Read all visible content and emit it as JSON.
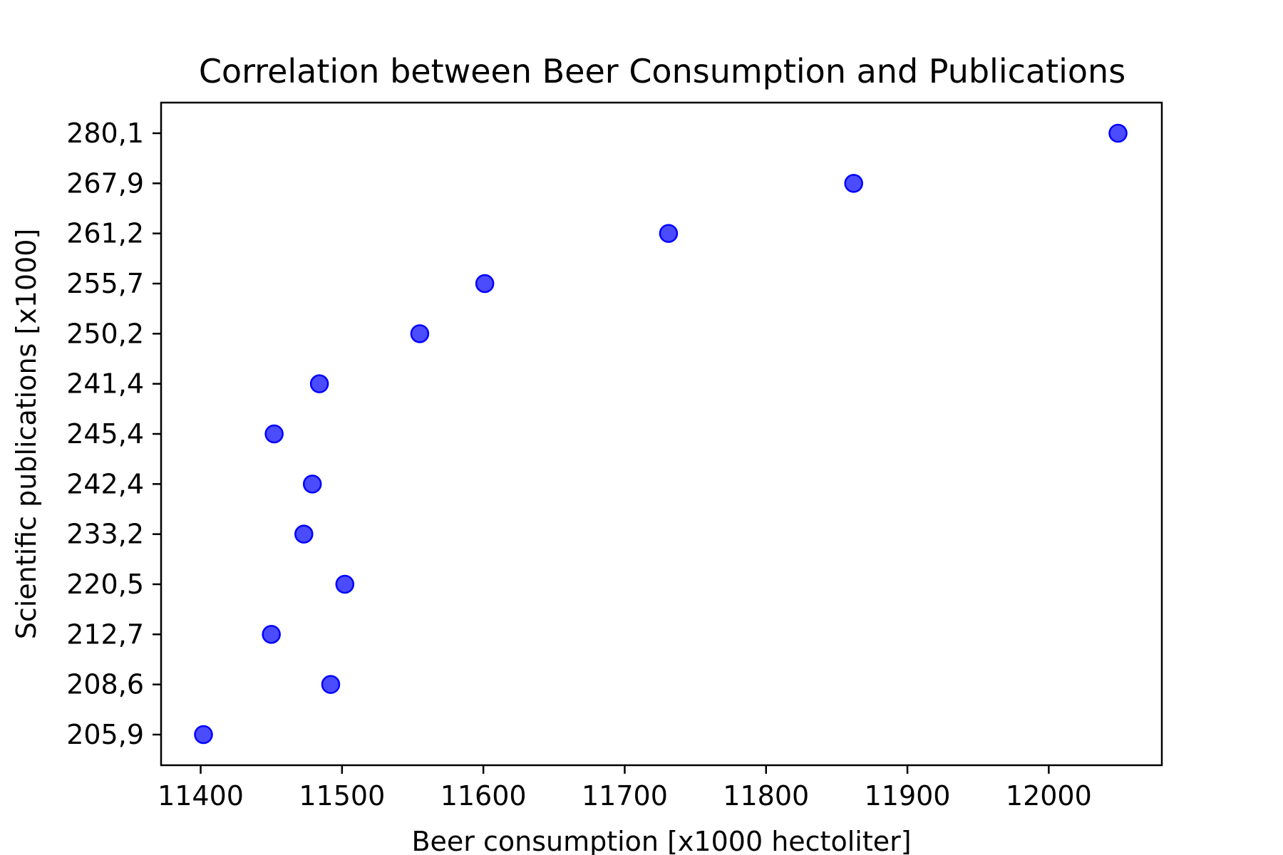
{
  "chart_data": {
    "type": "scatter",
    "title": "Correlation between Beer Consumption and Publications",
    "xlabel": "Beer consumption [x1000 hectoliter]",
    "ylabel": "Scientific publications [x1000]",
    "xlim": [
      11372,
      12080
    ],
    "x_ticks": [
      11400,
      11500,
      11600,
      11700,
      11800,
      11900,
      12000
    ],
    "x_tick_labels": [
      "11400",
      "11500",
      "11600",
      "11700",
      "11800",
      "11900",
      "12000"
    ],
    "y_axis": "categorical",
    "y_categories": [
      "205,9",
      "208,6",
      "212,7",
      "220,5",
      "233,2",
      "242,4",
      "245,4",
      "241,4",
      "250,2",
      "255,7",
      "261,2",
      "267,9",
      "280,1"
    ],
    "grid": false,
    "legend": false,
    "marker_color": "#0000ff",
    "marker_opacity": 0.7,
    "points": [
      {
        "x": 11402,
        "y": "205,9"
      },
      {
        "x": 11492,
        "y": "208,6"
      },
      {
        "x": 11450,
        "y": "212,7"
      },
      {
        "x": 11502,
        "y": "220,5"
      },
      {
        "x": 11473,
        "y": "233,2"
      },
      {
        "x": 11479,
        "y": "242,4"
      },
      {
        "x": 11452,
        "y": "245,4"
      },
      {
        "x": 11484,
        "y": "241,4"
      },
      {
        "x": 11555,
        "y": "250,2"
      },
      {
        "x": 11601,
        "y": "255,7"
      },
      {
        "x": 11731,
        "y": "261,2"
      },
      {
        "x": 11862,
        "y": "267,9"
      },
      {
        "x": 12049,
        "y": "280,1"
      }
    ]
  }
}
